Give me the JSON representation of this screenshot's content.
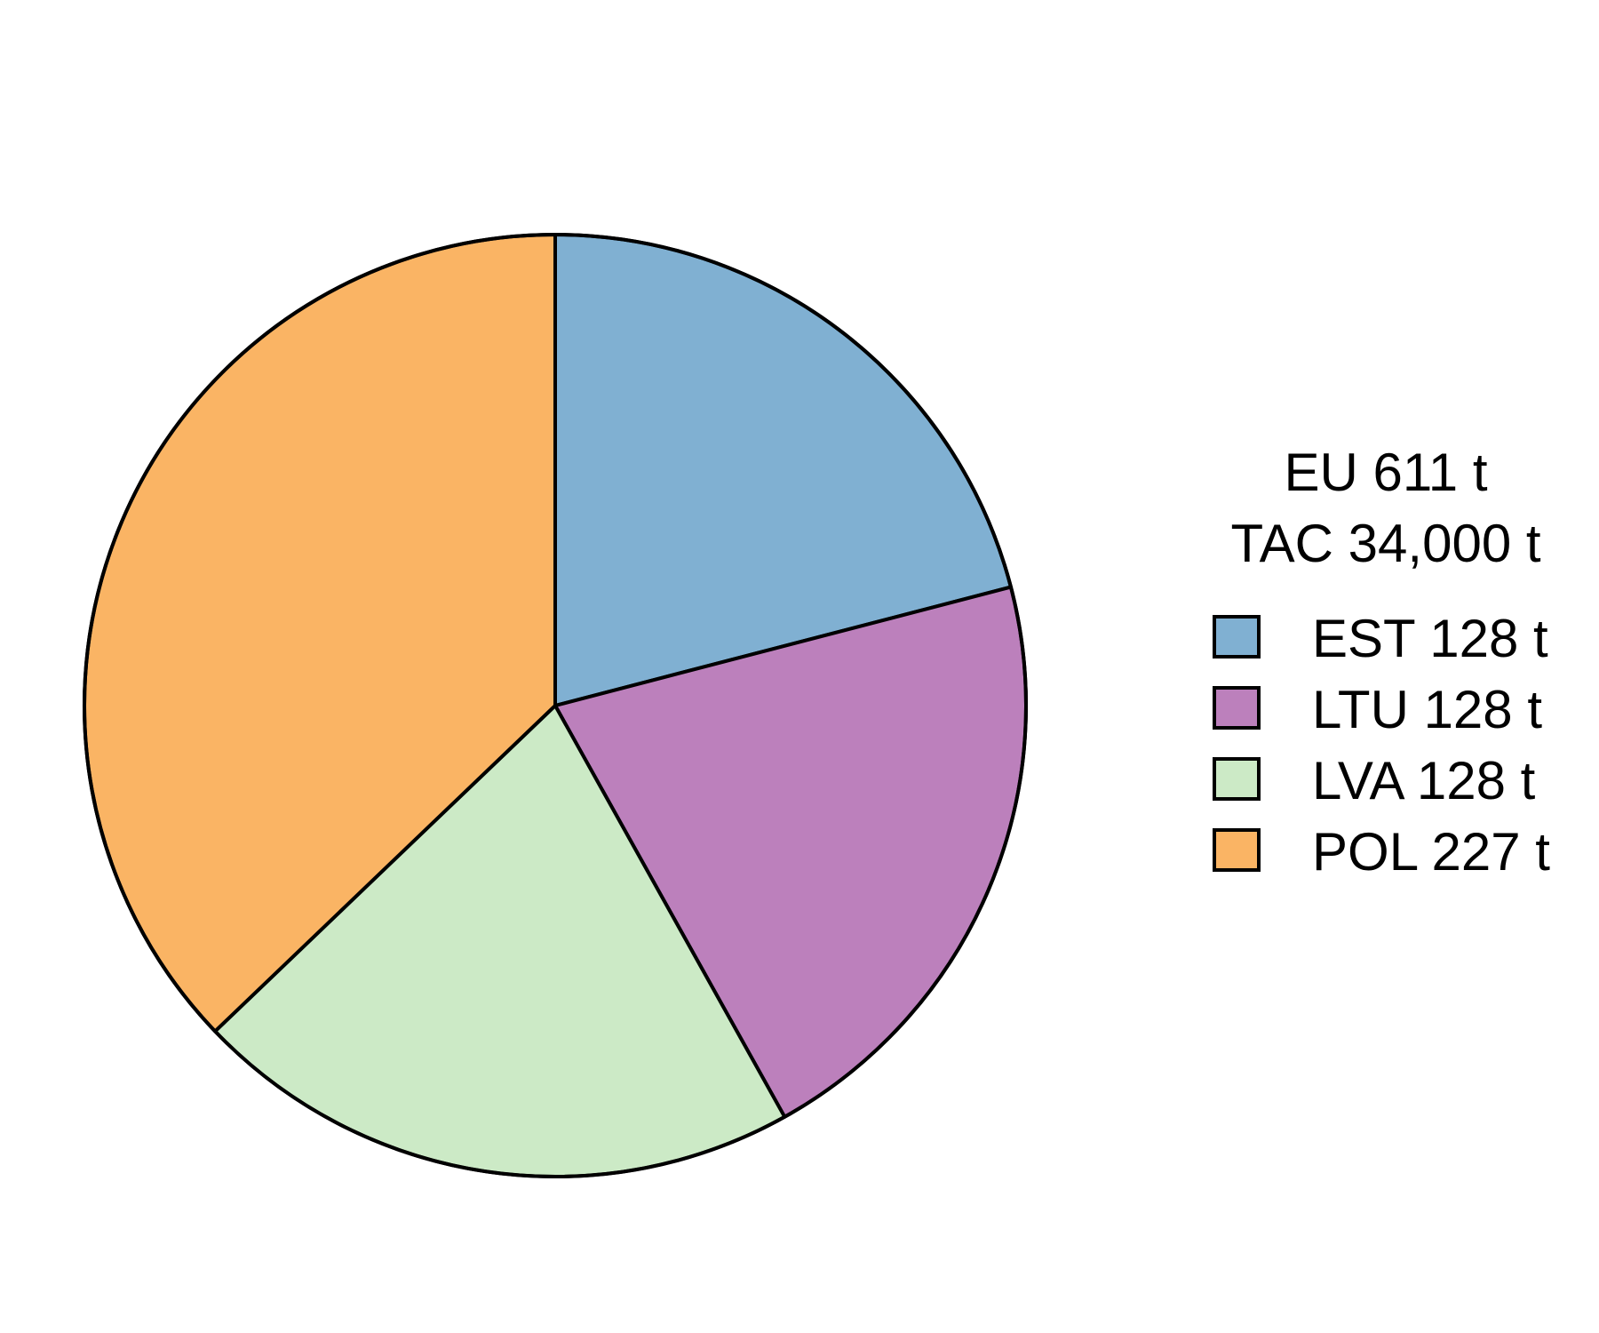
{
  "chart_data": {
    "type": "pie",
    "title": "",
    "start_angle_deg": 90,
    "direction": "clockwise",
    "legend_position": "right",
    "legend_title_lines": [
      "EU 611 t",
      "TAC 34,000 t"
    ],
    "slices": [
      {
        "label": "EST 128 t",
        "category": "EST",
        "value": 128,
        "color": "#80B0D2"
      },
      {
        "label": "LTU 128 t",
        "category": "LTU",
        "value": 128,
        "color": "#BC80BC"
      },
      {
        "label": "LVA 128 t",
        "category": "LVA",
        "value": 128,
        "color": "#CCEAC6"
      },
      {
        "label": "POL 227 t",
        "category": "POL",
        "value": 227,
        "color": "#FAB464"
      }
    ],
    "outline_color": "#000000"
  }
}
